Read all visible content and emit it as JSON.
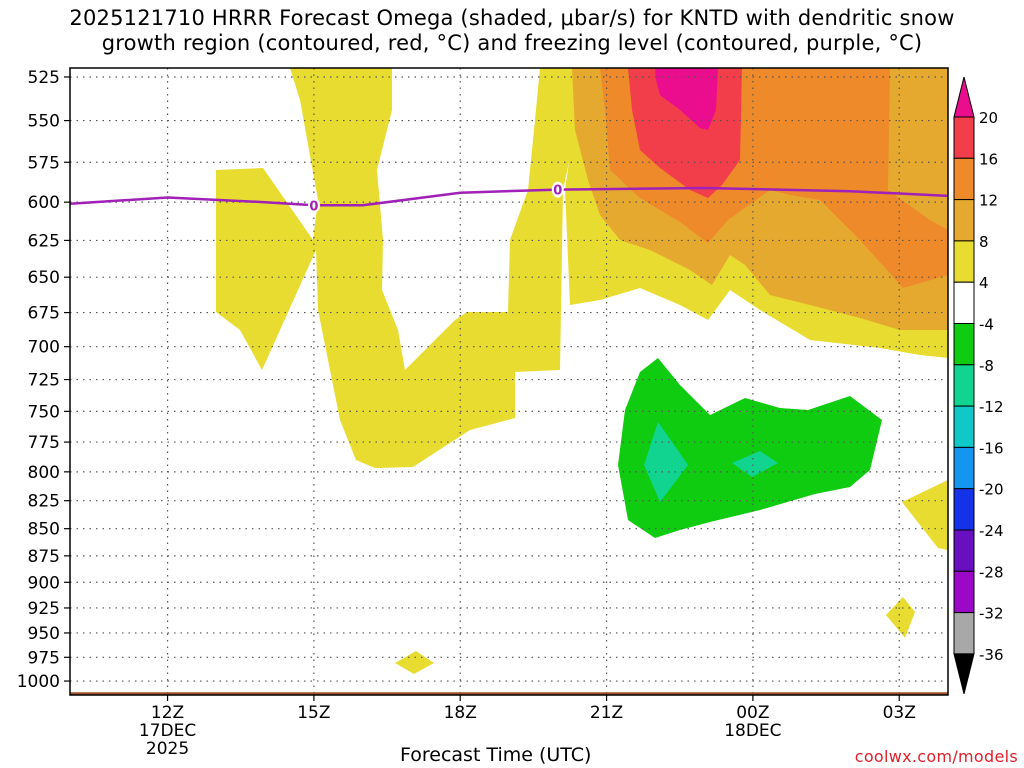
{
  "chart_data": {
    "type": "contour",
    "title_line1": "2025121710 HRRR Forecast Omega (shaded, μbar/s) for KNTD with dendritic snow",
    "title_line2": "growth region (contoured, red, °C) and freezing level (contoured, purple, °C)",
    "xlabel": "Forecast Time (UTC)",
    "ylabel": "",
    "y_ticks": [
      "525",
      "550",
      "575",
      "600",
      "625",
      "650",
      "675",
      "700",
      "725",
      "750",
      "775",
      "800",
      "825",
      "850",
      "875",
      "900",
      "925",
      "950",
      "975",
      "1000"
    ],
    "x_ticks": [
      {
        "hour": 12,
        "label": "12Z",
        "sub1": "17DEC",
        "sub2": "2025"
      },
      {
        "hour": 15,
        "label": "15Z",
        "sub1": "",
        "sub2": ""
      },
      {
        "hour": 18,
        "label": "18Z",
        "sub1": "",
        "sub2": ""
      },
      {
        "hour": 21,
        "label": "21Z",
        "sub1": "",
        "sub2": ""
      },
      {
        "hour": 24,
        "label": "00Z",
        "sub1": "18DEC",
        "sub2": ""
      },
      {
        "hour": 27,
        "label": "03Z",
        "sub1": "",
        "sub2": ""
      }
    ],
    "x_range_hours": [
      10,
      28
    ],
    "y_range_hpa": [
      520,
      1015
    ],
    "colorbar": {
      "labels": [
        "20",
        "16",
        "12",
        "8",
        "4",
        "-4",
        "-8",
        "-12",
        "-16",
        "-20",
        "-24",
        "-28",
        "-32",
        "-36"
      ],
      "colors": [
        "#ea0d8e",
        "#f23e4a",
        "#ee8a2a",
        "#e6a930",
        "#e8dc30",
        "#ffffff",
        "#10cc10",
        "#10d490",
        "#10c8c8",
        "#1496f0",
        "#1432e8",
        "#6810c0",
        "#9c08c8",
        "#a8a8a8"
      ]
    },
    "freezing_level": {
      "label": "0",
      "points": [
        [
          10,
          601
        ],
        [
          12,
          597
        ],
        [
          14,
          600
        ],
        [
          15,
          602
        ],
        [
          16,
          602
        ],
        [
          18,
          594
        ],
        [
          20,
          592
        ],
        [
          23,
          591
        ],
        [
          26,
          593
        ],
        [
          28,
          596
        ]
      ],
      "color": "#a020b8"
    },
    "terrain": {
      "pressure_hpa": 1012,
      "color": "#a0522d"
    }
  },
  "footer": {
    "credit": "coolwx.com/models"
  }
}
